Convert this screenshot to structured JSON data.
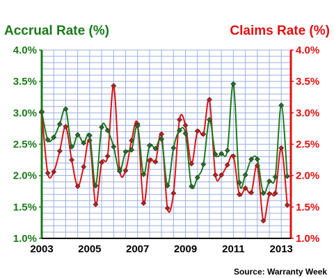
{
  "chart_data": {
    "type": "line",
    "left_axis_title": "Accrual Rate (%)",
    "right_axis_title": "Claims Rate (%)",
    "source": "Source: Warranty Week",
    "ylim": [
      1.0,
      4.0
    ],
    "y_ticks": [
      "1.0%",
      "1.5%",
      "2.0%",
      "2.5%",
      "3.0%",
      "3.5%",
      "4.0%"
    ],
    "x_ticks": [
      "2003",
      "2005",
      "2007",
      "2009",
      "2011",
      "2013"
    ],
    "xlim": [
      2003,
      2013.4
    ],
    "grid": true,
    "colors": {
      "accrual": "#1a7a1a",
      "claims": "#e01010",
      "grid": "#9aaee0"
    },
    "series": [
      {
        "name": "Accrual Rate (%)",
        "x": [
          2003.0,
          2003.25,
          2003.5,
          2003.75,
          2004.0,
          2004.25,
          2004.5,
          2004.75,
          2005.0,
          2005.25,
          2005.5,
          2005.75,
          2006.0,
          2006.25,
          2006.5,
          2006.75,
          2007.0,
          2007.25,
          2007.5,
          2007.75,
          2008.0,
          2008.25,
          2008.5,
          2008.75,
          2009.0,
          2009.25,
          2009.5,
          2009.75,
          2010.0,
          2010.25,
          2010.5,
          2010.75,
          2011.0,
          2011.25,
          2011.5,
          2011.75,
          2012.0,
          2012.25,
          2012.5,
          2012.75,
          2013.0,
          2013.25
        ],
        "values": [
          3.02,
          2.57,
          2.61,
          2.82,
          3.06,
          2.46,
          2.65,
          2.52,
          2.64,
          1.84,
          2.77,
          2.72,
          2.46,
          2.07,
          2.38,
          2.41,
          2.79,
          2.02,
          2.48,
          2.43,
          2.58,
          1.84,
          2.44,
          2.72,
          2.67,
          1.83,
          1.97,
          2.18,
          2.89,
          2.34,
          2.35,
          2.4,
          3.46,
          1.89,
          2.01,
          2.26,
          2.26,
          1.72,
          1.91,
          1.98,
          3.12,
          1.99
        ]
      },
      {
        "name": "Claims Rate (%)",
        "x": [
          2003.0,
          2003.25,
          2003.5,
          2003.75,
          2004.0,
          2004.25,
          2004.5,
          2004.75,
          2005.0,
          2005.25,
          2005.5,
          2005.75,
          2006.0,
          2006.25,
          2006.5,
          2006.75,
          2007.0,
          2007.25,
          2007.5,
          2007.75,
          2008.0,
          2008.25,
          2008.5,
          2008.75,
          2009.0,
          2009.25,
          2009.5,
          2009.75,
          2010.0,
          2010.25,
          2010.5,
          2010.75,
          2011.0,
          2011.25,
          2011.5,
          2011.75,
          2012.0,
          2012.25,
          2012.5,
          2012.75,
          2013.0,
          2013.25
        ],
        "values": [
          3.01,
          2.04,
          2.06,
          2.39,
          2.78,
          2.25,
          1.83,
          2.14,
          2.56,
          1.54,
          2.21,
          2.31,
          3.43,
          2.1,
          2.08,
          2.56,
          2.82,
          1.56,
          2.24,
          2.22,
          2.66,
          1.48,
          1.72,
          2.89,
          2.8,
          2.19,
          2.71,
          2.66,
          3.21,
          2.01,
          2.01,
          2.17,
          2.31,
          1.7,
          1.8,
          1.73,
          2.16,
          1.28,
          1.71,
          1.72,
          2.44,
          1.53
        ]
      }
    ]
  }
}
